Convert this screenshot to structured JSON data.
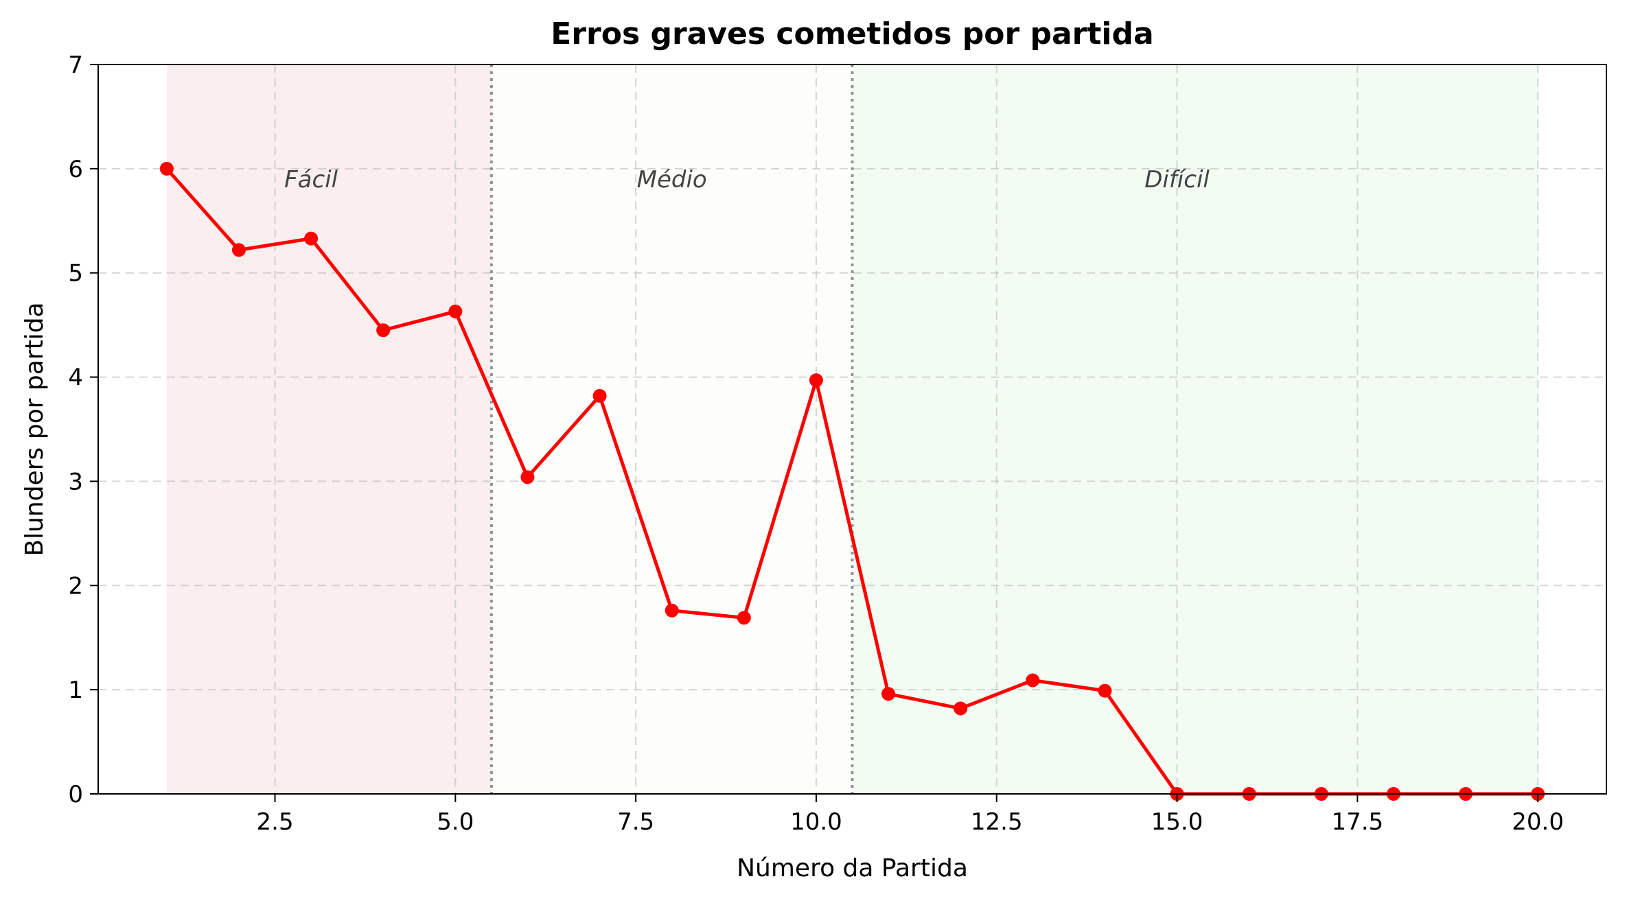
{
  "chart_data": {
    "type": "line",
    "title": "Erros graves cometidos por partida",
    "xlabel": "Número da Partida",
    "ylabel": "Blunders por partida",
    "xlim": [
      0.05,
      20.95
    ],
    "ylim": [
      0,
      7
    ],
    "xticks": [
      2.5,
      5.0,
      7.5,
      10.0,
      12.5,
      15.0,
      17.5,
      20.0
    ],
    "xtick_labels": [
      "2.5",
      "5.0",
      "7.5",
      "10.0",
      "12.5",
      "15.0",
      "17.5",
      "20.0"
    ],
    "yticks": [
      0,
      1,
      2,
      3,
      4,
      5,
      6,
      7
    ],
    "ytick_labels": [
      "0",
      "1",
      "2",
      "3",
      "4",
      "5",
      "6",
      "7"
    ],
    "grid": true,
    "series": [
      {
        "color": "#ff0000",
        "x": [
          1,
          2,
          3,
          4,
          5,
          6,
          7,
          8,
          9,
          10,
          11,
          12,
          13,
          14,
          15,
          16,
          17,
          18,
          19,
          20
        ],
        "y": [
          6.0,
          5.22,
          5.33,
          4.45,
          4.63,
          3.04,
          3.82,
          1.76,
          1.69,
          3.97,
          0.96,
          0.82,
          1.09,
          0.99,
          0.0,
          0.0,
          0.0,
          0.0,
          0.0,
          0.0
        ]
      }
    ],
    "regions": [
      {
        "label": "Fácil",
        "x_start": 1.0,
        "x_end": 5.5,
        "label_x": 3.0,
        "label_y": 5.9,
        "color": "#f8e0e0"
      },
      {
        "label": "Médio",
        "x_start": 5.5,
        "x_end": 10.5,
        "label_x": 8.0,
        "label_y": 5.9,
        "color": "#fcfcf5"
      },
      {
        "label": "Difícil",
        "x_start": 10.5,
        "x_end": 20.0,
        "label_x": 15.0,
        "label_y": 5.9,
        "color": "#e8fae8"
      }
    ],
    "boundaries": [
      5.5,
      10.5
    ]
  }
}
